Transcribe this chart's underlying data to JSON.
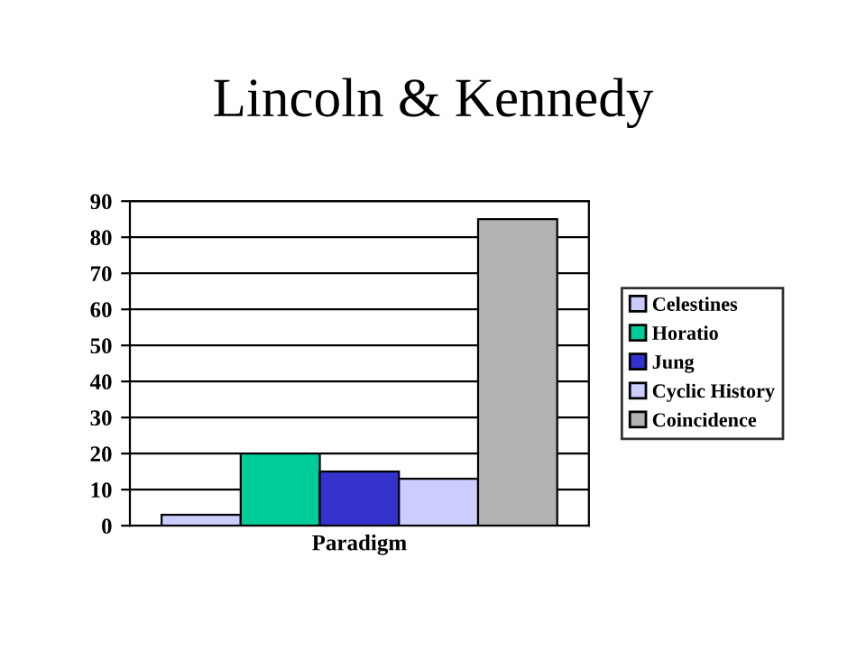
{
  "chart_data": {
    "type": "bar",
    "title": "Lincoln & Kennedy",
    "xlabel": "Paradigm",
    "categories": [
      null,
      null,
      null,
      null,
      null
    ],
    "stacked": true,
    "series": [
      {
        "name": "Celestines",
        "color": "#ccccff",
        "values": [
          3,
          null,
          null,
          null,
          null
        ]
      },
      {
        "name": "Horatio",
        "color": "#00cc99",
        "values": [
          null,
          20,
          null,
          null,
          null
        ]
      },
      {
        "name": "Jung",
        "color": "#3333cc",
        "values": [
          null,
          null,
          15,
          null,
          null
        ]
      },
      {
        "name": "Cyclic History",
        "color": "#ccccff",
        "values": [
          null,
          null,
          null,
          13,
          null
        ]
      },
      {
        "name": "Coincidence",
        "color": "#b2b2b2",
        "values": [
          null,
          null,
          null,
          null,
          85
        ]
      }
    ],
    "ylim": [
      0,
      90
    ],
    "yticks": [
      0,
      10,
      20,
      30,
      40,
      50,
      60,
      70,
      80,
      90
    ],
    "grid": "y",
    "legend": "right"
  }
}
